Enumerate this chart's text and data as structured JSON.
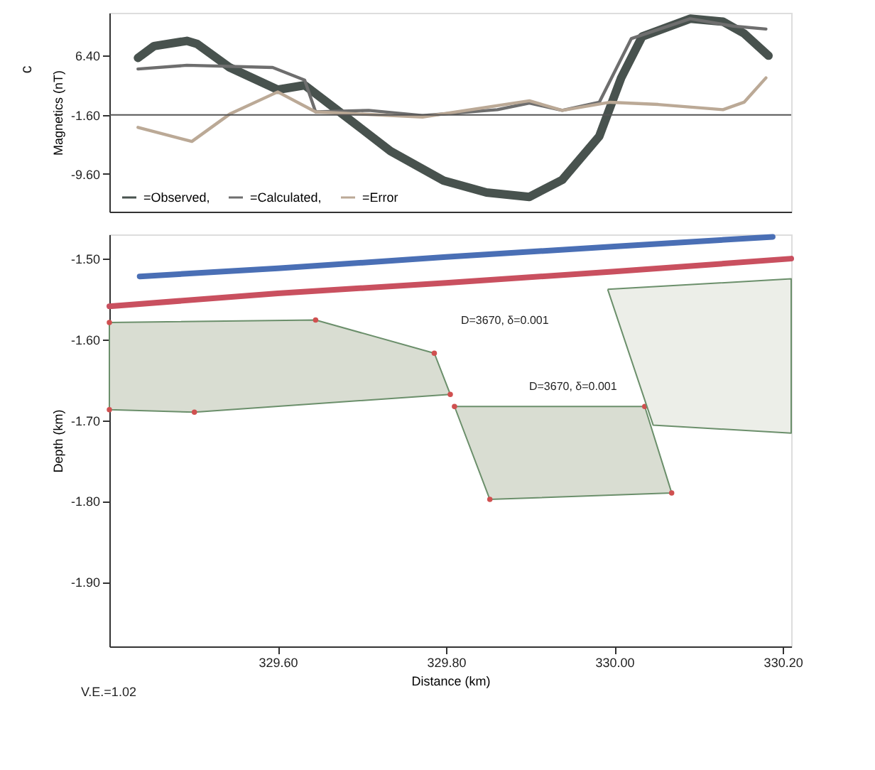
{
  "chart_data": [
    {
      "type": "line",
      "ylabel": "Magnetics (nT)",
      "xlim": [
        329.4,
        330.21
      ],
      "ylim": [
        -14.7,
        12.2
      ],
      "yticks": [
        {
          "value": 6.4,
          "label": "6.40"
        },
        {
          "value": -1.6,
          "label": "-1.60"
        },
        {
          "value": -9.6,
          "label": "-9.60"
        }
      ],
      "tick_labels": "y",
      "grid": false,
      "legend": "bottom left",
      "annotations": [
        "c"
      ],
      "ref_lines": [
        {
          "axis": "y",
          "value": -1.6,
          "color": "#555555"
        }
      ],
      "series": [
        {
          "name": "=Observed,",
          "color": "#48524e",
          "x": [
            329.434,
            329.453,
            329.492,
            329.504,
            329.543,
            329.6,
            329.632,
            329.67,
            329.734,
            329.797,
            329.848,
            329.899,
            329.938,
            329.982,
            330.008,
            330.033,
            330.09,
            330.129,
            330.154,
            330.183
          ],
          "values": [
            6.1,
            7.7,
            8.4,
            8.0,
            4.8,
            1.8,
            2.4,
            -0.9,
            -6.5,
            -10.5,
            -12.1,
            -12.7,
            -10.4,
            -4.5,
            3.4,
            9.0,
            11.4,
            11.0,
            9.4,
            6.4
          ]
        },
        {
          "name": "=Calculated,",
          "color": "#6e6e6e",
          "x": [
            329.434,
            329.492,
            329.594,
            329.632,
            329.645,
            329.708,
            329.772,
            329.861,
            329.899,
            329.938,
            329.982,
            330.02,
            330.09,
            330.141,
            330.18
          ],
          "values": [
            4.6,
            5.1,
            4.8,
            3.1,
            -1.2,
            -1.0,
            -1.7,
            -0.9,
            0.0,
            -1.0,
            0.1,
            8.7,
            11.4,
            10.4,
            10.0
          ]
        },
        {
          "name": "=Error",
          "color": "#bba996",
          "x": [
            329.434,
            329.498,
            329.543,
            329.6,
            329.645,
            329.772,
            329.899,
            329.938,
            329.995,
            330.052,
            330.129,
            330.154,
            330.18
          ],
          "values": [
            -3.3,
            -5.2,
            -1.5,
            1.5,
            -1.2,
            -1.9,
            0.3,
            -1.0,
            0.1,
            -0.2,
            -0.9,
            0.1,
            3.4
          ]
        }
      ]
    },
    {
      "type": "line",
      "xlabel": "Distance (km)",
      "ylabel": "Depth (km)",
      "xlim": [
        329.4,
        330.21
      ],
      "ylim": [
        -1.98,
        -1.47
      ],
      "xticks": [
        {
          "value": 329.6,
          "label": "329.60"
        },
        {
          "value": 329.8,
          "label": "329.80"
        },
        {
          "value": 330.0,
          "label": "330.00"
        },
        {
          "value": 330.2,
          "label": "330.20"
        }
      ],
      "yticks": [
        {
          "value": -1.5,
          "label": "-1.50"
        },
        {
          "value": -1.6,
          "label": "-1.60"
        },
        {
          "value": -1.7,
          "label": "-1.70"
        },
        {
          "value": -1.8,
          "label": "-1.80"
        },
        {
          "value": -1.9,
          "label": "-1.90"
        }
      ],
      "grid": false,
      "legend": false,
      "annotations": [
        "D=3670, δ=0.001",
        "D=3670, δ=0.001",
        "V.E.=1.02"
      ],
      "series": [
        {
          "color": "#4a6fb5",
          "x": [
            329.436,
            329.6,
            329.8,
            330.0,
            330.188
          ],
          "values": [
            -1.522,
            -1.512,
            -1.498,
            -1.485,
            -1.473
          ]
        },
        {
          "color": "#c9505f",
          "x": [
            329.4,
            329.6,
            329.8,
            330.0,
            330.21
          ],
          "values": [
            -1.559,
            -1.543,
            -1.53,
            -1.516,
            -1.5
          ]
        },
        {
          "type": "area",
          "marker": "circle",
          "color": "#d9ddd2",
          "x": [
            329.4,
            329.645,
            329.786,
            329.805,
            329.501,
            329.4
          ],
          "values": [
            -1.579,
            -1.576,
            -1.617,
            -1.668,
            -1.69,
            -1.687
          ]
        },
        {
          "type": "area",
          "marker": "circle",
          "color": "#d9ddd2",
          "x": [
            329.81,
            330.036,
            330.068,
            329.852
          ],
          "values": [
            -1.683,
            -1.683,
            -1.79,
            -1.798
          ]
        },
        {
          "type": "area",
          "marker": "none",
          "color": "#eceee8",
          "x": [
            329.992,
            330.21,
            330.21,
            330.046
          ],
          "values": [
            -1.538,
            -1.525,
            -1.716,
            -1.706
          ]
        }
      ]
    }
  ]
}
